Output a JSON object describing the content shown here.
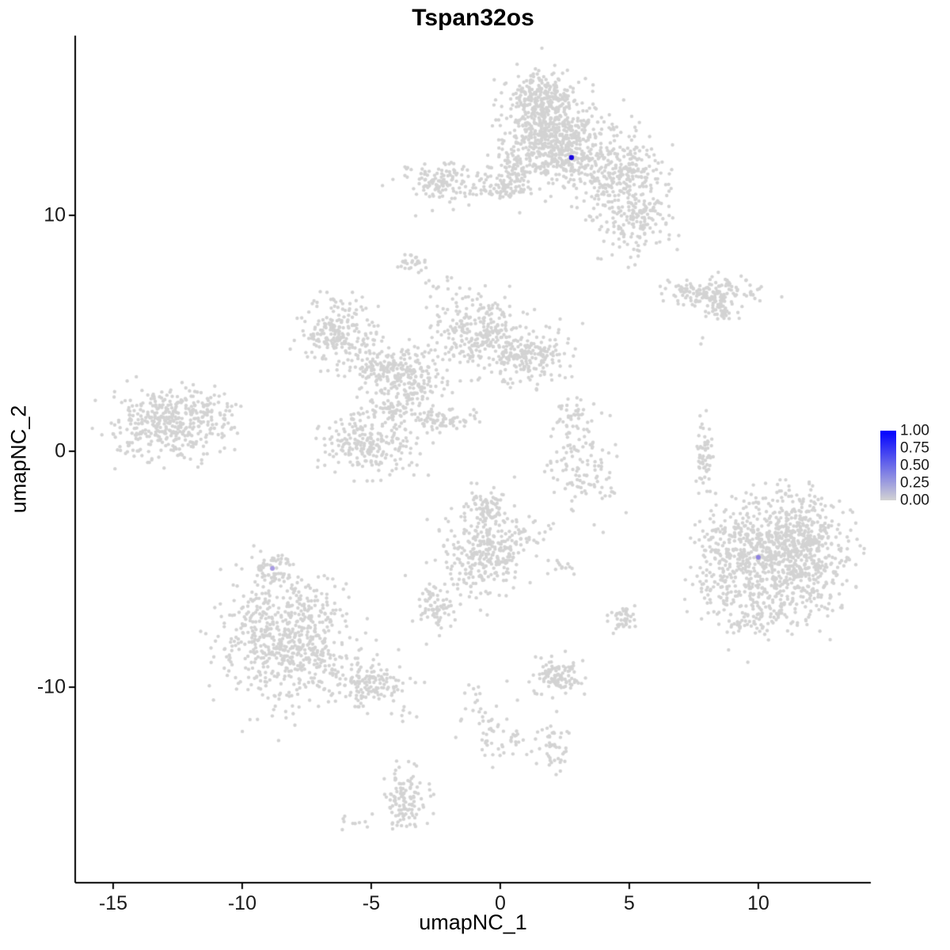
{
  "figure": {
    "title": "Tspan32os",
    "xlabel": "umapNC_1",
    "ylabel": "umapNC_2"
  },
  "chart_data": {
    "type": "scatter",
    "title": "Tspan32os",
    "xlabel": "umapNC_1",
    "ylabel": "umapNC_2",
    "xlim": [
      -16.47,
      14.36
    ],
    "ylim": [
      -18.29,
      17.62
    ],
    "x_ticks": [
      "-15",
      "-10",
      "-5",
      "0",
      "5",
      "10"
    ],
    "x_tick_values": [
      -15,
      -10,
      -5,
      0,
      5,
      10
    ],
    "y_ticks": [
      "10",
      "0",
      "-10"
    ],
    "y_tick_values": [
      10,
      0,
      -10
    ],
    "grid": false,
    "axis_color": "#000000",
    "point_color": "#d3d3d3",
    "point_radius": 2.2,
    "clusters_format": [
      "x",
      "y",
      "sx",
      "sy",
      "n"
    ],
    "clusters": [
      [
        1.78,
        13.59,
        0.86,
        1.2,
        520
      ],
      [
        1.55,
        15.1,
        0.6,
        0.45,
        130
      ],
      [
        2.6,
        12.9,
        0.7,
        0.7,
        180
      ],
      [
        4.54,
        11.91,
        0.9,
        0.8,
        300
      ],
      [
        5.15,
        9.73,
        0.75,
        0.65,
        160
      ],
      [
        0.4,
        11.58,
        0.45,
        0.65,
        90
      ],
      [
        -2.21,
        11.41,
        0.75,
        0.42,
        130
      ],
      [
        -0.21,
        11.07,
        0.45,
        0.16,
        35
      ],
      [
        -3.37,
        7.99,
        0.28,
        0.23,
        28
      ],
      [
        8.07,
        6.71,
        0.9,
        0.3,
        170
      ],
      [
        8.53,
        5.87,
        0.3,
        0.26,
        35
      ],
      [
        7.76,
        4.7,
        0.08,
        0.08,
        2
      ],
      [
        -6.35,
        5.03,
        0.72,
        0.65,
        210
      ],
      [
        -4.51,
        3.52,
        0.75,
        0.6,
        170
      ],
      [
        -3.13,
        2.85,
        0.45,
        0.82,
        110
      ],
      [
        -0.83,
        5.03,
        0.85,
        0.82,
        260
      ],
      [
        1.23,
        4.03,
        0.75,
        0.58,
        190
      ],
      [
        -5.12,
        0.34,
        0.85,
        0.72,
        240
      ],
      [
        -4.2,
        2.01,
        0.45,
        0.4,
        55
      ],
      [
        -2.21,
        1.34,
        0.6,
        0.22,
        70
      ],
      [
        -2.36,
        6.88,
        0.4,
        0.5,
        14
      ],
      [
        -12.94,
        1.17,
        1.05,
        0.72,
        380
      ],
      [
        -11.05,
        1.3,
        0.5,
        0.5,
        40
      ],
      [
        3.16,
        -0.34,
        0.65,
        1.15,
        110
      ],
      [
        2.9,
        1.5,
        0.3,
        0.4,
        30
      ],
      [
        4.2,
        -1.8,
        0.3,
        0.5,
        12
      ],
      [
        7.91,
        -0.17,
        0.2,
        0.82,
        55
      ],
      [
        11.29,
        -4.36,
        1.05,
        1.3,
        850
      ],
      [
        8.99,
        -4.7,
        0.75,
        1.15,
        280
      ],
      [
        9.82,
        -7.05,
        0.6,
        0.4,
        70
      ],
      [
        -0.43,
        -4.03,
        0.85,
        0.92,
        330
      ],
      [
        -0.6,
        -2.3,
        0.4,
        0.3,
        50
      ],
      [
        -2.58,
        -6.71,
        0.37,
        0.5,
        75
      ],
      [
        -1.5,
        -5.5,
        0.4,
        0.4,
        18
      ],
      [
        2.4,
        -4.9,
        0.35,
        0.2,
        12
      ],
      [
        4.69,
        -7.11,
        0.3,
        0.26,
        40
      ],
      [
        -8.34,
        -7.89,
        1.2,
        1.3,
        650
      ],
      [
        -5.12,
        -9.8,
        0.65,
        0.5,
        140
      ],
      [
        -8.9,
        -4.97,
        0.37,
        0.4,
        55
      ],
      [
        -3.9,
        -11.2,
        0.3,
        0.3,
        8
      ],
      [
        -0.9,
        -10.2,
        0.4,
        0.4,
        10
      ],
      [
        2.24,
        -9.56,
        0.48,
        0.4,
        105
      ],
      [
        -0.12,
        -11.91,
        0.6,
        0.72,
        55
      ],
      [
        2.09,
        -12.48,
        0.3,
        0.5,
        45
      ],
      [
        -3.68,
        -14.6,
        0.37,
        0.65,
        115
      ],
      [
        -5.74,
        -15.84,
        0.28,
        0.16,
        9
      ]
    ],
    "highlights": [
      {
        "x": 2.76,
        "y": 12.45,
        "color": "#1804e0",
        "radius": 3.2
      },
      {
        "x": 10.0,
        "y": -4.5,
        "color": "#8f82e0",
        "radius": 3.0
      },
      {
        "x": -8.83,
        "y": -4.97,
        "color": "#a89ae4",
        "radius": 3.0
      }
    ],
    "legend": {
      "position": "right",
      "labels": [
        "1.00",
        "0.75",
        "0.50",
        "0.25",
        "0.00"
      ],
      "gradient": [
        "#0000ff",
        "#3535f4",
        "#6a6ae9",
        "#9e9ede",
        "#d3d3d3"
      ]
    }
  }
}
